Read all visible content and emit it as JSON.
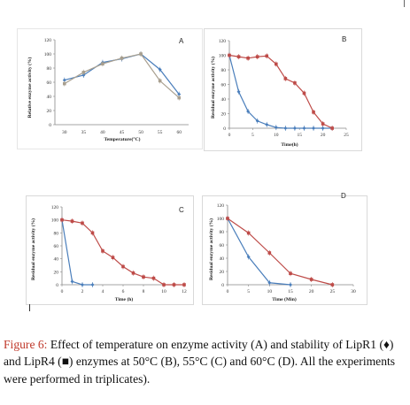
{
  "panels": {
    "A": {
      "letter": "A",
      "ylabel": "Relative enzyme activity (%)",
      "xlabel": "Temperature(°C)"
    },
    "B": {
      "letter": "B",
      "ylabel": "Residual enzyme activity (%)",
      "xlabel": "Time(h)"
    },
    "C": {
      "letter": "C",
      "ylabel": "Residual enzyme activity (%)",
      "xlabel": "Time (h)"
    },
    "D": {
      "letter": "D",
      "ylabel": "Residual enzyme activity (%)",
      "xlabel": "Time (Min)"
    }
  },
  "caption": {
    "figure_label": "Figure 6:",
    "text": "Effect of temperature on enzyme activity (A) and stability of LipR1 (♦) and LipR4 (■) enzymes at 50°C (B), 55°C (C) and 60°C (D). All the experiments were performed in triplicates)."
  },
  "colors": {
    "LipR1": "#4a7ebb",
    "LipR4": "#be4b48"
  },
  "chart_data": [
    {
      "panel": "A",
      "type": "line",
      "xlabel": "Temperature(°C)",
      "ylabel": "Relative enzyme activity (%)",
      "x": [
        30,
        35,
        40,
        45,
        50,
        55,
        60
      ],
      "xticks": [
        30,
        35,
        40,
        45,
        50,
        55,
        60
      ],
      "ylim": [
        0,
        120
      ],
      "yticks": [
        0,
        20,
        40,
        60,
        80,
        100,
        120
      ],
      "series": [
        {
          "marker": "diamond",
          "color": "#4a7ebb",
          "values": [
            63,
            70,
            88,
            93,
            100,
            78,
            43
          ]
        },
        {
          "marker": "square",
          "color": "#a89f8f",
          "values": [
            58,
            74,
            86,
            94,
            100,
            62,
            38
          ]
        }
      ]
    },
    {
      "panel": "B",
      "type": "line",
      "xlabel": "Time(h)",
      "ylabel": "Residual enzyme activity (%)",
      "xlim": [
        0,
        25
      ],
      "xticks": [
        0,
        5,
        10,
        15,
        20,
        25
      ],
      "ylim": [
        0,
        120
      ],
      "yticks": [
        0,
        20,
        40,
        60,
        80,
        100,
        120
      ],
      "series": [
        {
          "marker": "diamond",
          "color": "#4a7ebb",
          "points": [
            [
              0,
              100
            ],
            [
              2,
              50
            ],
            [
              4,
              23
            ],
            [
              6,
              10
            ],
            [
              8,
              5
            ],
            [
              10,
              1
            ],
            [
              12,
              0
            ],
            [
              14,
              0
            ],
            [
              16,
              0
            ],
            [
              18,
              0
            ],
            [
              20,
              0
            ],
            [
              22,
              0
            ]
          ]
        },
        {
          "marker": "square",
          "color": "#be4b48",
          "points": [
            [
              0,
              100
            ],
            [
              2,
              98
            ],
            [
              4,
              96
            ],
            [
              6,
              98
            ],
            [
              8,
              99
            ],
            [
              10,
              88
            ],
            [
              12,
              68
            ],
            [
              14,
              62
            ],
            [
              16,
              48
            ],
            [
              18,
              22
            ],
            [
              20,
              6
            ],
            [
              22,
              0
            ]
          ]
        }
      ]
    },
    {
      "panel": "C",
      "type": "line",
      "xlabel": "Time (h)",
      "ylabel": "Residual enzyme activity (%)",
      "xlim": [
        0,
        12
      ],
      "xticks": [
        0,
        2,
        4,
        6,
        8,
        10,
        12
      ],
      "ylim": [
        0,
        120
      ],
      "yticks": [
        0,
        20,
        40,
        60,
        80,
        100,
        120
      ],
      "series": [
        {
          "marker": "diamond",
          "color": "#4a7ebb",
          "points": [
            [
              0,
              100
            ],
            [
              1,
              5
            ],
            [
              2,
              0
            ],
            [
              3,
              0
            ]
          ]
        },
        {
          "marker": "square",
          "color": "#be4b48",
          "points": [
            [
              0,
              100
            ],
            [
              1,
              98
            ],
            [
              2,
              95
            ],
            [
              3,
              80
            ],
            [
              4,
              52
            ],
            [
              5,
              42
            ],
            [
              6,
              28
            ],
            [
              7,
              18
            ],
            [
              8,
              12
            ],
            [
              9,
              10
            ],
            [
              10,
              0
            ],
            [
              11,
              0
            ],
            [
              12,
              0
            ]
          ]
        }
      ]
    },
    {
      "panel": "D",
      "type": "line",
      "xlabel": "Time (Min)",
      "ylabel": "Residual enzyme activity (%)",
      "xlim": [
        0,
        30
      ],
      "xticks": [
        0,
        5,
        10,
        15,
        20,
        25,
        30
      ],
      "ylim": [
        0,
        120
      ],
      "yticks": [
        0,
        20,
        40,
        60,
        80,
        100,
        120
      ],
      "series": [
        {
          "marker": "diamond",
          "color": "#4a7ebb",
          "points": [
            [
              0,
              100
            ],
            [
              5,
              42
            ],
            [
              10,
              3
            ],
            [
              15,
              0
            ]
          ]
        },
        {
          "marker": "square",
          "color": "#be4b48",
          "points": [
            [
              0,
              100
            ],
            [
              5,
              78
            ],
            [
              10,
              48
            ],
            [
              15,
              17
            ],
            [
              20,
              8
            ],
            [
              25,
              0
            ]
          ]
        }
      ]
    }
  ]
}
